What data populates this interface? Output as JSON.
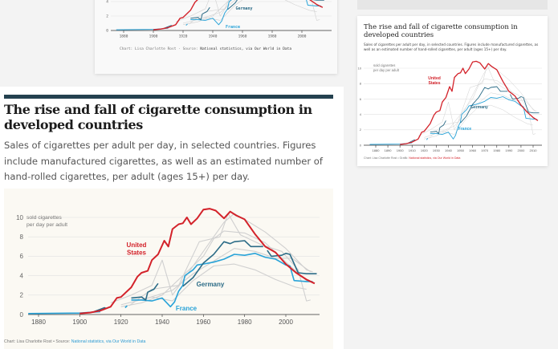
{
  "colors": {
    "us": "#d3222a",
    "germany": "#2c6c87",
    "france": "#29a3d8",
    "other": "#d0d0d0",
    "rule": "#24414f",
    "link_blue": "#2b9ad3",
    "link_red": "#d3222a"
  },
  "article": {
    "title": "The rise and fall of cigarette consumption in developed countries",
    "subtitle": "Sales of cigarettes per adult per day, in selected countries. Figures include manufactured cigarettes, as well as an estimated number of hand-rolled cigarettes, per adult (ages 15+) per day."
  },
  "right_card": {
    "title": "The rise and fall of cigarette consumption in developed countries",
    "subtitle": "Sales of cigarettes per adult per day, in selected countries. Figures include manufactured cigarettes, as well as an estimated number of hand-rolled cigarettes, per adult (ages 15+) per day."
  },
  "chart_data": [
    {
      "id": "main",
      "type": "line",
      "ylabel": "sold cigarettes per day per adult",
      "ylabel_lines": [
        "sold cigarettes",
        "per day per adult"
      ],
      "xlim": [
        1875,
        2015
      ],
      "ylim": [
        0,
        11
      ],
      "x_ticks": [
        1880,
        1900,
        1920,
        1940,
        1960,
        1980,
        2000
      ],
      "y_ticks": [
        0,
        2,
        4,
        6,
        8,
        10
      ],
      "grid": true,
      "source": {
        "prefix": "Chart: Lisa Charlotte Rost • Source: ",
        "link": "National statistics, via Our World in Data"
      },
      "labels": {
        "us": [
          "United",
          "States"
        ],
        "germany": [
          "Germany"
        ],
        "france": [
          "France"
        ]
      }
    },
    {
      "id": "top",
      "type": "line",
      "xlim": [
        1875,
        2015
      ],
      "ylim": [
        0,
        11
      ],
      "x_ticks": [
        1880,
        1900,
        1920,
        1940,
        1960,
        1980,
        2000
      ],
      "y_ticks": [
        0,
        2,
        4
      ],
      "grid": true,
      "source": {
        "prefix": "Chart: Lisa Charlotte Rost · Source: ",
        "link": "National statistics, via Our World in Data"
      },
      "labels": {
        "germany": [
          "Germany"
        ],
        "france": [
          "France"
        ]
      }
    },
    {
      "id": "right",
      "type": "line",
      "ylabel_lines": [
        "sold cigarettes",
        "per day per adult"
      ],
      "xlim": [
        1875,
        2015
      ],
      "ylim": [
        0,
        11
      ],
      "x_ticks": [
        1880,
        1890,
        1900,
        1910,
        1920,
        1930,
        1940,
        1950,
        1960,
        1970,
        1980,
        1990,
        2000,
        2010
      ],
      "y_ticks": [
        0,
        2,
        4,
        6,
        8,
        10
      ],
      "grid": true,
      "source": {
        "prefix": "Chart: Lisa Charlotte Rost • Grafik: ",
        "link": "National statistics, via Our World in Data"
      },
      "labels": {
        "us": [
          "United",
          "States"
        ],
        "germany": [
          "Germany"
        ],
        "france": [
          "France"
        ]
      }
    }
  ],
  "series": [
    {
      "key": "other",
      "points": [
        [
          1915,
          1.2
        ],
        [
          1925,
          2
        ],
        [
          1935,
          3
        ],
        [
          1940,
          5.6
        ],
        [
          1945,
          2
        ],
        [
          1950,
          3.5
        ],
        [
          1960,
          6.5
        ],
        [
          1970,
          9.5
        ],
        [
          1975,
          10.4
        ],
        [
          1980,
          9.8
        ],
        [
          1990,
          8.5
        ],
        [
          2000,
          6.8
        ],
        [
          2010,
          4.6
        ],
        [
          2013,
          4.4
        ]
      ]
    },
    {
      "key": "other",
      "points": [
        [
          1920,
          0.8
        ],
        [
          1930,
          1.2
        ],
        [
          1940,
          2
        ],
        [
          1950,
          4
        ],
        [
          1960,
          6
        ],
        [
          1965,
          7.8
        ],
        [
          1970,
          8.6
        ],
        [
          1980,
          8.4
        ],
        [
          1990,
          7.4
        ],
        [
          2000,
          5.4
        ],
        [
          2010,
          3.5
        ],
        [
          2014,
          3.2
        ]
      ]
    },
    {
      "key": "other",
      "points": [
        [
          1920,
          1
        ],
        [
          1935,
          1.8
        ],
        [
          1945,
          1.4
        ],
        [
          1955,
          3.5
        ],
        [
          1965,
          5
        ],
        [
          1975,
          5.2
        ],
        [
          1985,
          4.6
        ],
        [
          1995,
          3.6
        ],
        [
          2005,
          2.8
        ],
        [
          2010,
          2.6
        ]
      ]
    },
    {
      "key": "other",
      "points": [
        [
          1924,
          0.9
        ],
        [
          1935,
          2.6
        ],
        [
          1948,
          3
        ],
        [
          1958,
          7.5
        ],
        [
          1968,
          8
        ],
        [
          1972,
          10.4
        ],
        [
          1978,
          8.2
        ],
        [
          1988,
          7.2
        ],
        [
          1998,
          6.5
        ],
        [
          2006,
          4.6
        ],
        [
          2010,
          1.4
        ],
        [
          2012,
          1.5
        ]
      ]
    },
    {
      "key": "other",
      "points": [
        [
          1930,
          1.5
        ],
        [
          1945,
          2.5
        ],
        [
          1955,
          4.2
        ],
        [
          1965,
          5.5
        ],
        [
          1975,
          6.8
        ],
        [
          1985,
          6.5
        ],
        [
          1995,
          5.8
        ],
        [
          2003,
          5.8
        ],
        [
          2012,
          4.4
        ]
      ]
    },
    {
      "key": "france",
      "points": [
        [
          1875,
          0.1
        ],
        [
          1900,
          0.15
        ],
        [
          1910,
          0.3
        ],
        null,
        [
          1922,
          0.7
        ],
        [
          1923,
          0.9
        ],
        null,
        [
          1925,
          1.5
        ],
        [
          1930,
          1.5
        ],
        [
          1935,
          1.4
        ],
        [
          1940,
          1.7
        ],
        [
          1944,
          0.8
        ],
        [
          1946,
          1.3
        ],
        [
          1948,
          2.4
        ],
        [
          1950,
          3
        ],
        [
          1951,
          4
        ],
        [
          1955,
          4.6
        ],
        [
          1957,
          5.1
        ],
        [
          1960,
          5.2
        ],
        [
          1965,
          5.4
        ],
        [
          1970,
          5.7
        ],
        [
          1975,
          6.2
        ],
        [
          1980,
          6.1
        ],
        [
          1985,
          6.3
        ],
        [
          1990,
          5.9
        ],
        [
          1995,
          5.7
        ],
        [
          2000,
          5.1
        ],
        [
          2002,
          5
        ],
        [
          2004,
          3.5
        ],
        [
          2010,
          3.4
        ],
        [
          2013,
          3.4
        ]
      ]
    },
    {
      "key": "germany",
      "points": [
        [
          1907,
          0.3
        ],
        [
          1912,
          0.7
        ],
        [
          1913,
          0.6
        ],
        null,
        [
          1925,
          1.7
        ],
        [
          1930,
          1.8
        ],
        [
          1932,
          1.5
        ],
        [
          1933,
          2.3
        ],
        [
          1936,
          2.6
        ],
        [
          1938,
          3.2
        ],
        null,
        [
          1950,
          2.9
        ],
        [
          1955,
          3.8
        ],
        [
          1960,
          5.3
        ],
        [
          1965,
          6.2
        ],
        [
          1970,
          7.5
        ],
        [
          1973,
          7.3
        ],
        [
          1975,
          7.5
        ],
        [
          1980,
          7.6
        ],
        [
          1983,
          7
        ],
        [
          1989,
          7
        ],
        null,
        [
          1991,
          6.6
        ],
        [
          1993,
          6
        ],
        [
          1998,
          6.1
        ],
        [
          2000,
          6.3
        ],
        [
          2002,
          6.2
        ],
        [
          2006,
          4.3
        ],
        [
          2010,
          4.2
        ],
        [
          2015,
          4.2
        ]
      ]
    },
    {
      "key": "us",
      "points": [
        [
          1900,
          0.1
        ],
        [
          1905,
          0.2
        ],
        [
          1910,
          0.4
        ],
        [
          1915,
          0.8
        ],
        [
          1918,
          1.7
        ],
        [
          1920,
          1.8
        ],
        [
          1925,
          2.8
        ],
        [
          1928,
          3.9
        ],
        [
          1930,
          4.3
        ],
        [
          1933,
          4.5
        ],
        [
          1935,
          5.6
        ],
        [
          1938,
          6.2
        ],
        [
          1941,
          7.6
        ],
        [
          1943,
          7
        ],
        [
          1945,
          8.8
        ],
        [
          1948,
          9.3
        ],
        [
          1950,
          9.4
        ],
        [
          1952,
          10
        ],
        [
          1954,
          9.3
        ],
        [
          1957,
          9.9
        ],
        [
          1960,
          10.8
        ],
        [
          1963,
          10.9
        ],
        [
          1966,
          10.7
        ],
        [
          1970,
          9.9
        ],
        [
          1973,
          10.6
        ],
        [
          1976,
          10.2
        ],
        [
          1980,
          9.8
        ],
        [
          1985,
          8.3
        ],
        [
          1990,
          7
        ],
        [
          1995,
          6.4
        ],
        [
          2000,
          5.2
        ],
        [
          2005,
          4.3
        ],
        [
          2010,
          3.6
        ],
        [
          2014,
          3.2
        ]
      ]
    }
  ]
}
